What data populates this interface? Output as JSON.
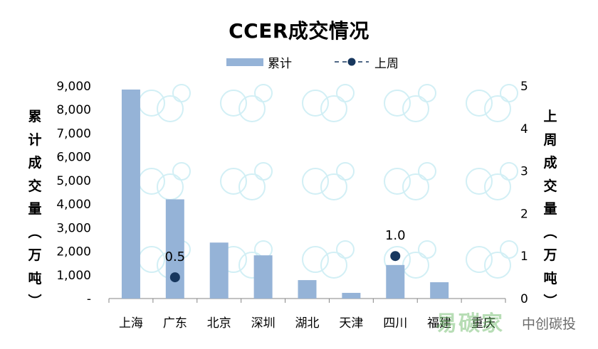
{
  "chart_data": {
    "type": "bar",
    "title": "CCER成交情况",
    "categories": [
      "上海",
      "广东",
      "北京",
      "深圳",
      "湖北",
      "天津",
      "四川",
      "福建",
      "重庆"
    ],
    "series": [
      {
        "name": "累计",
        "kind": "bar",
        "axis": "left",
        "values": [
          8850,
          4200,
          2370,
          1830,
          780,
          240,
          1420,
          690,
          0
        ]
      },
      {
        "name": "上周",
        "kind": "point",
        "axis": "right",
        "values": [
          null,
          0.5,
          null,
          null,
          null,
          null,
          1.0,
          null,
          null
        ],
        "data_labels": [
          null,
          "0.5",
          null,
          null,
          null,
          null,
          "1.0",
          null,
          null
        ]
      }
    ],
    "ylabel": "累计成交量（万吨）",
    "ylabel2": "上周成交量（万吨）",
    "ylim": [
      0,
      9000
    ],
    "y2lim": [
      0,
      5
    ],
    "yticks": [
      "-",
      "1,000",
      "2,000",
      "3,000",
      "4,000",
      "5,000",
      "6,000",
      "7,000",
      "8,000",
      "9,000"
    ],
    "y2ticks": [
      "0",
      "1",
      "2",
      "3",
      "4",
      "5"
    ],
    "legend_position": "top",
    "grid": false,
    "colors": {
      "bar": "#95B3D7",
      "point": "#17375E"
    }
  },
  "watermark": {
    "brand": "易碳家",
    "source": "中创碳投",
    "url": "tanpaifang.com"
  }
}
